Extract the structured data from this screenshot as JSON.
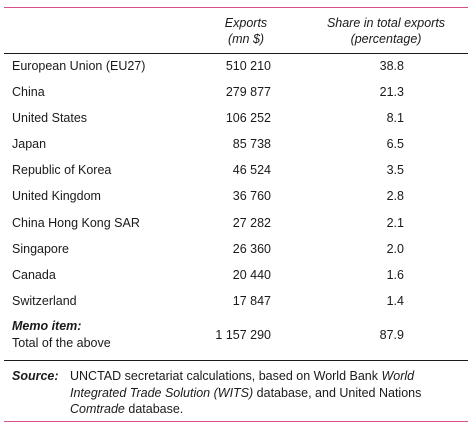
{
  "header": {
    "exports_line1": "Exports",
    "exports_line2": "(mn $)",
    "share_line1": "Share in total exports",
    "share_line2": "(percentage)"
  },
  "rows": [
    {
      "country": "European Union (EU27)",
      "exports": "510 210",
      "share": "38.8"
    },
    {
      "country": "China",
      "exports": "279 877",
      "share": "21.3"
    },
    {
      "country": "United States",
      "exports": "106 252",
      "share": "8.1"
    },
    {
      "country": "Japan",
      "exports": "85 738",
      "share": "6.5"
    },
    {
      "country": "Republic of Korea",
      "exports": "46 524",
      "share": "3.5"
    },
    {
      "country": "United Kingdom",
      "exports": "36 760",
      "share": "2.8"
    },
    {
      "country": "China Hong Kong SAR",
      "exports": "27 282",
      "share": "2.1"
    },
    {
      "country": "Singapore",
      "exports": "26 360",
      "share": "2.0"
    },
    {
      "country": "Canada",
      "exports": "20 440",
      "share": "1.6"
    },
    {
      "country": "Switzerland",
      "exports": "17 847",
      "share": "1.4"
    }
  ],
  "memo": {
    "title": "Memo item:",
    "subtitle": "Total of the above",
    "exports": "1 157 290",
    "share": "87.9"
  },
  "source": {
    "label": "Source:",
    "text_1": "UNCTAD secretariat calculations, based on World Bank ",
    "text_2": "Integrated Trade Solution (WITS)",
    "text_3": " database, and United Nations ",
    "text_4": "Comtrade",
    "text_5": " database.",
    "italic_1": "World"
  },
  "colors": {
    "accent_rule": "#d94f8e"
  }
}
